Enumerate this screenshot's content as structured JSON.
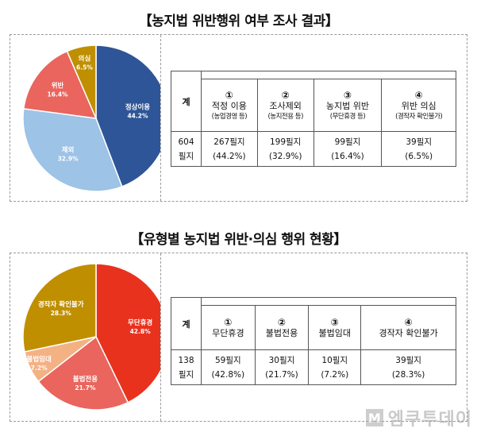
{
  "section1": {
    "title": "【농지법 위반행위 여부 조사 결과】",
    "table": {
      "total_header": "계",
      "columns": [
        {
          "num": "①",
          "label": "적정 이용",
          "sub": "(농업경영 등)",
          "count": "267필지",
          "pct": "(44.2%)"
        },
        {
          "num": "②",
          "label": "조사제외",
          "sub": "(농지전용 등)",
          "count": "199필지",
          "pct": "(32.9%)"
        },
        {
          "num": "③",
          "label": "농지법 위반",
          "sub": "(무단휴경 등)",
          "count": "99필지",
          "pct": "(16.4%)"
        },
        {
          "num": "④",
          "label": "위반 의심",
          "sub": "(경작자 확인불가)",
          "count": "39필지",
          "pct": "(6.5%)"
        }
      ],
      "total_value_line1": "604",
      "total_value_line2": "필지"
    }
  },
  "section2": {
    "title": "【유형별 농지법 위반·의심 행위 현황】",
    "table": {
      "total_header": "계",
      "columns": [
        {
          "num": "①",
          "label": "무단휴경",
          "count": "59필지",
          "pct": "(42.8%)"
        },
        {
          "num": "②",
          "label": "불법전용",
          "count": "30필지",
          "pct": "(21.7%)"
        },
        {
          "num": "③",
          "label": "불법임대",
          "count": "10필지",
          "pct": "(7.2%)"
        },
        {
          "num": "④",
          "label": "경작자 확인불가",
          "count": "39필지",
          "pct": "(28.3%)"
        }
      ],
      "total_value_line1": "138",
      "total_value_line2": "필지"
    }
  },
  "chart_data": [
    {
      "type": "pie",
      "title": "",
      "slices": [
        {
          "label": "정상이용",
          "value": 44.2,
          "value_label": "44.2%",
          "color": "#2e5597"
        },
        {
          "label": "제외",
          "value": 32.9,
          "value_label": "32.9%",
          "color": "#9dc3e6"
        },
        {
          "label": "위반",
          "value": 16.4,
          "value_label": "16.4%",
          "color": "#e9655d"
        },
        {
          "label": "의심",
          "value": 6.5,
          "value_label": "6.5%",
          "color": "#bf8f00"
        }
      ]
    },
    {
      "type": "pie",
      "title": "",
      "slices": [
        {
          "label": "무단휴경",
          "value": 42.8,
          "value_label": "42.8%",
          "color": "#e8321e"
        },
        {
          "label": "불법전용",
          "value": 21.7,
          "value_label": "21.7%",
          "color": "#e9655d"
        },
        {
          "label": "불법임대",
          "value": 7.2,
          "value_label": "7.2%",
          "color": "#f4b183"
        },
        {
          "label": "경작자 확인불가",
          "value": 28.3,
          "value_label": "28.3%",
          "color": "#bf8f00"
        }
      ]
    }
  ],
  "watermark": {
    "logo": "M",
    "text": "엠쿠투데이"
  }
}
